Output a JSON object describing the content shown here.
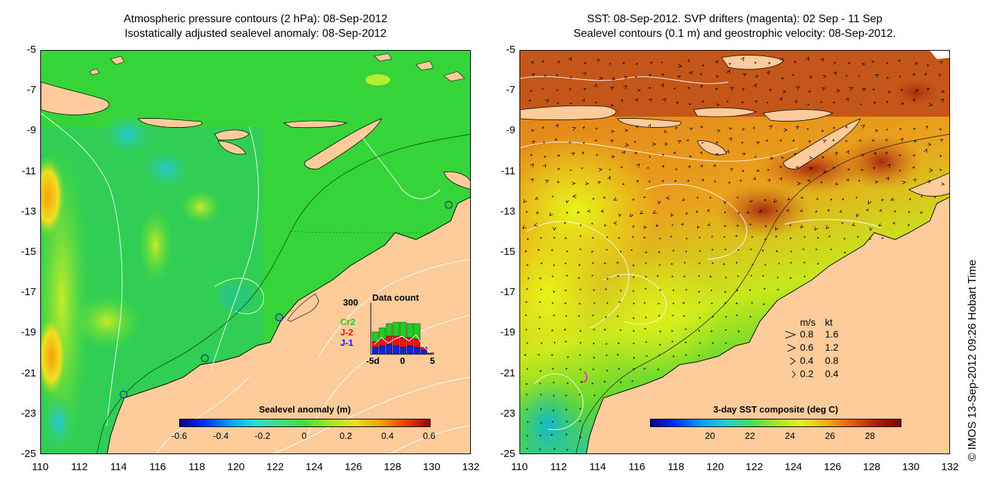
{
  "left_panel": {
    "title_line1": "Atmospheric pressure contours (2 hPa): 08-Sep-2012",
    "title_line2": "Isostatically adjusted sealevel anomaly: 08-Sep-2012",
    "y_ticks": [
      "-5",
      "-7",
      "-9",
      "-11",
      "-13",
      "-15",
      "-17",
      "-19",
      "-21",
      "-23",
      "-25"
    ],
    "x_ticks": [
      "110",
      "112",
      "114",
      "116",
      "118",
      "120",
      "122",
      "124",
      "126",
      "128",
      "130",
      "132"
    ],
    "colorbar": {
      "title": "Sealevel anomaly (m)",
      "ticks": [
        "-0.6",
        "-0.4",
        "-0.2",
        "0",
        "0.2",
        "0.4",
        "0.6"
      ]
    },
    "inset": {
      "title": "Data count",
      "y_max": "300",
      "series": [
        "Cr2",
        "J-2",
        "J-1"
      ],
      "series_colors": [
        "#22cc22",
        "#ee1111",
        "#1122dd"
      ],
      "x_ticks": [
        "-5d",
        "0",
        "5"
      ]
    }
  },
  "right_panel": {
    "title_line1": "SST: 08-Sep-2012. SVP drifters (magenta): 02 Sep - 11 Sep",
    "title_line2": "Sealevel contours (0.1 m) and geostrophic velocity: 08-Sep-2012.",
    "y_ticks": [
      "-5",
      "-7",
      "-9",
      "-11",
      "-13",
      "-15",
      "-17",
      "-19",
      "-21",
      "-23",
      "-25"
    ],
    "x_ticks": [
      "110",
      "112",
      "114",
      "116",
      "118",
      "120",
      "122",
      "124",
      "126",
      "128",
      "130",
      "132"
    ],
    "colorbar": {
      "title": "3-day SST composite (deg C)",
      "ticks": [
        "20",
        "22",
        "24",
        "26",
        "28"
      ]
    },
    "velocity_legend": {
      "header_ms": "m/s",
      "header_kt": "kt",
      "rows": [
        {
          "ms": "0.8",
          "kt": "1.6"
        },
        {
          "ms": "0.6",
          "kt": "1.2"
        },
        {
          "ms": "0.4",
          "kt": "0.8"
        },
        {
          "ms": "0.2",
          "kt": "0.4"
        }
      ]
    }
  },
  "copyright": "© IMOS 13-Sep-2012 09:26 Hobart Time",
  "colors": {
    "land": "#fdcc9a",
    "sla_green": "#33dd33",
    "sst_orange": "#e88a1a",
    "sst_red": "#b8320c",
    "sst_yellow": "#d8f21a"
  }
}
